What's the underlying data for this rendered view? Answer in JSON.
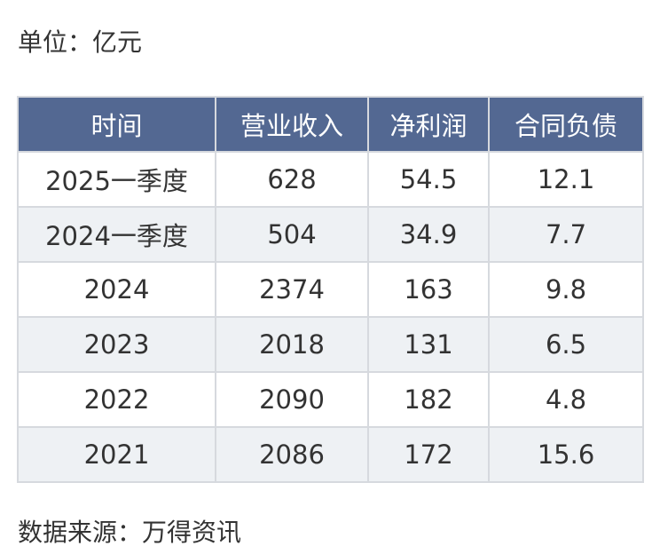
{
  "unit_label": "单位：亿元",
  "table": {
    "headers": [
      "时间",
      "营业收入",
      "净利润",
      "合同负债"
    ],
    "rows": [
      [
        "2025一季度",
        "628",
        "54.5",
        "12.1"
      ],
      [
        "2024一季度",
        "504",
        "34.9",
        "7.7"
      ],
      [
        "2024",
        "2374",
        "163",
        "9.8"
      ],
      [
        "2023",
        "2018",
        "131",
        "6.5"
      ],
      [
        "2022",
        "2090",
        "182",
        "4.8"
      ],
      [
        "2021",
        "2086",
        "172",
        "15.6"
      ]
    ]
  },
  "source_label": "数据来源：万得资讯",
  "colors": {
    "header_background": "#536892",
    "header_text": "#ffffff",
    "row_alt_background": "#eef1f4",
    "border": "#d6d9de"
  }
}
